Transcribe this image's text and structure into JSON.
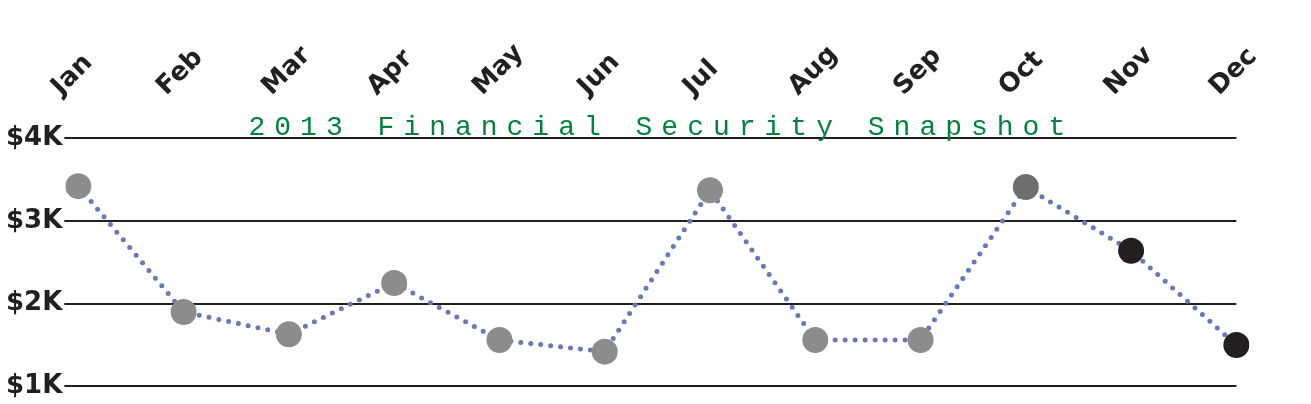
{
  "chart_data": {
    "type": "line",
    "title": "2013 Financial Security Snapshot",
    "categories": [
      "Jan",
      "Feb",
      "Mar",
      "Apr",
      "May",
      "Jun",
      "Jul",
      "Aug",
      "Sep",
      "Oct",
      "Nov",
      "Dec"
    ],
    "series": [
      {
        "color": "#6a78b8",
        "colors": [
          "#8c8c8c",
          "#8c8c8c",
          "#8c8c8c",
          "#8c8c8c",
          "#8c8c8c",
          "#8c8c8c",
          "#8c8c8c",
          "#8c8c8c",
          "#8c8c8c",
          "#6e6e6e",
          "#231f20",
          "#231f20"
        ],
        "values": [
          3.42,
          1.9,
          1.63,
          2.25,
          1.56,
          1.42,
          3.37,
          1.56,
          1.56,
          3.41,
          2.64,
          1.5
        ]
      }
    ],
    "ylim": [
      1,
      4
    ],
    "yticks": [
      {
        "value": 1,
        "label": "$1K"
      },
      {
        "value": 2,
        "label": "$2K"
      },
      {
        "value": 3,
        "label": "$3K"
      },
      {
        "value": 4,
        "label": "$4K"
      }
    ],
    "grid": "y",
    "legend": false,
    "marker": "circle",
    "line_style": "dotted"
  }
}
